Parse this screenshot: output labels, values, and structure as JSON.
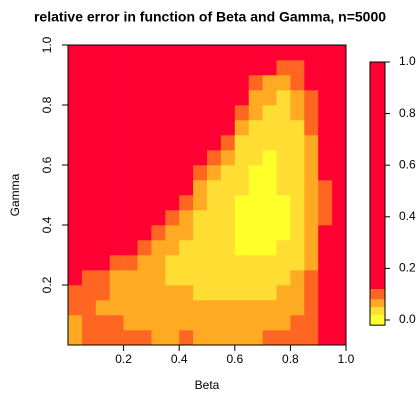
{
  "chart_data": {
    "type": "heatmap",
    "title": "relative error in function of Beta and Gamma, n=5000",
    "x_label": "Beta",
    "y_label": "Gamma",
    "xlim": [
      0,
      1
    ],
    "ylim": [
      0,
      1
    ],
    "xticks": [
      0.2,
      0.4,
      0.6,
      0.8,
      {
        "value": 1,
        "label": "1.0"
      }
    ],
    "yticks": [
      0.2,
      0.4,
      0.6,
      0.8,
      {
        "value": 1,
        "label": "1.0"
      }
    ],
    "x": [
      0.025,
      0.075,
      0.125,
      0.175,
      0.225,
      0.275,
      0.325,
      0.375,
      0.425,
      0.475,
      0.525,
      0.575,
      0.625,
      0.675,
      0.725,
      0.775,
      0.825,
      0.875,
      0.925,
      0.975
    ],
    "y": [
      0.025,
      0.075,
      0.125,
      0.175,
      0.225,
      0.275,
      0.325,
      0.375,
      0.425,
      0.475,
      0.525,
      0.575,
      0.625,
      0.675,
      0.725,
      0.775,
      0.825,
      0.875,
      0.925,
      0.975
    ],
    "z": [
      [
        0.06,
        0.1,
        0.12,
        0.1,
        0.09,
        0.09,
        0.08,
        0.08,
        0.09,
        0.08,
        0.08,
        0.08,
        0.08,
        0.08,
        0.09,
        0.1,
        0.1,
        0.12,
        1,
        1
      ],
      [
        0.08,
        0.09,
        0.1,
        0.09,
        0.08,
        0.08,
        0.08,
        0.07,
        0.07,
        0.07,
        0.07,
        0.07,
        0.07,
        0.07,
        0.07,
        0.08,
        0.09,
        0.12,
        1,
        1
      ],
      [
        0.1,
        0.09,
        0.08,
        0.08,
        0.07,
        0.07,
        0.07,
        0.06,
        0.06,
        0.06,
        0.06,
        0.06,
        0.06,
        0.06,
        0.06,
        0.07,
        0.08,
        0.1,
        1,
        1
      ],
      [
        0.12,
        0.1,
        0.09,
        0.08,
        0.07,
        0.07,
        0.06,
        0.06,
        0.06,
        0.05,
        0.05,
        0.05,
        0.05,
        0.05,
        0.05,
        0.06,
        0.07,
        0.1,
        1,
        1
      ],
      [
        1,
        0.12,
        0.1,
        0.08,
        0.07,
        0.06,
        0.06,
        0.05,
        0.05,
        0.05,
        0.04,
        0.04,
        0.04,
        0.04,
        0.04,
        0.05,
        0.06,
        0.09,
        1,
        1
      ],
      [
        1,
        1,
        1,
        0.12,
        0.09,
        0.07,
        0.06,
        0.05,
        0.05,
        0.04,
        0.04,
        0.03,
        0.03,
        0.03,
        0.03,
        0.04,
        0.05,
        0.08,
        1,
        1
      ],
      [
        1,
        1,
        1,
        1,
        1,
        0.1,
        0.07,
        0.06,
        0.05,
        0.04,
        0.03,
        0.03,
        0.02,
        0.02,
        0.02,
        0.03,
        0.04,
        0.07,
        1,
        1
      ],
      [
        1,
        1,
        1,
        1,
        1,
        1,
        0.12,
        0.08,
        0.06,
        0.05,
        0.04,
        0.03,
        0.02,
        0.01,
        0.01,
        0.02,
        0.03,
        0.06,
        1,
        1
      ],
      [
        1,
        1,
        1,
        1,
        1,
        1,
        1,
        0.12,
        0.07,
        0.05,
        0.04,
        0.03,
        0.02,
        0.01,
        0.01,
        0.02,
        0.03,
        0.06,
        0.12,
        1
      ],
      [
        1,
        1,
        1,
        1,
        1,
        1,
        1,
        1,
        0.1,
        0.06,
        0.04,
        0.03,
        0.02,
        0.01,
        0.01,
        0.02,
        0.04,
        0.06,
        0.12,
        1
      ],
      [
        1,
        1,
        1,
        1,
        1,
        1,
        1,
        1,
        1,
        0.08,
        0.05,
        0.04,
        0.03,
        0.02,
        0.02,
        0.03,
        0.04,
        0.07,
        0.12,
        1
      ],
      [
        1,
        1,
        1,
        1,
        1,
        1,
        1,
        1,
        1,
        0.12,
        0.07,
        0.05,
        0.03,
        0.02,
        0.02,
        0.03,
        0.04,
        0.08,
        1,
        1
      ],
      [
        1,
        1,
        1,
        1,
        1,
        1,
        1,
        1,
        1,
        1,
        0.12,
        0.06,
        0.04,
        0.03,
        0.02,
        0.03,
        0.05,
        0.08,
        1,
        1
      ],
      [
        1,
        1,
        1,
        1,
        1,
        1,
        1,
        1,
        1,
        1,
        1,
        0.1,
        0.05,
        0.04,
        0.03,
        0.03,
        0.05,
        0.08,
        1,
        1
      ],
      [
        1,
        1,
        1,
        1,
        1,
        1,
        1,
        1,
        1,
        1,
        1,
        1,
        0.07,
        0.05,
        0.04,
        0.04,
        0.05,
        0.09,
        1,
        1
      ],
      [
        1,
        1,
        1,
        1,
        1,
        1,
        1,
        1,
        1,
        1,
        1,
        1,
        0.12,
        0.06,
        0.04,
        0.05,
        0.06,
        0.1,
        1,
        1
      ],
      [
        1,
        1,
        1,
        1,
        1,
        1,
        1,
        1,
        1,
        1,
        1,
        1,
        1,
        0.08,
        0.06,
        0.05,
        0.07,
        0.12,
        1,
        1
      ],
      [
        1,
        1,
        1,
        1,
        1,
        1,
        1,
        1,
        1,
        1,
        1,
        1,
        1,
        0.12,
        0.08,
        0.07,
        0.1,
        1,
        1,
        1
      ],
      [
        1,
        1,
        1,
        1,
        1,
        1,
        1,
        1,
        1,
        1,
        1,
        1,
        1,
        1,
        1,
        0.1,
        0.12,
        1,
        1,
        1
      ],
      [
        1,
        1,
        1,
        1,
        1,
        1,
        1,
        1,
        1,
        1,
        1,
        1,
        1,
        1,
        1,
        1,
        1,
        1,
        1,
        1
      ]
    ],
    "colorbar": {
      "breaks": [
        -0.02,
        0.02,
        0.05,
        0.08,
        0.12,
        1
      ],
      "colors": [
        "#ffff2a",
        "#ffdd33",
        "#ffaa22",
        "#ff6622",
        "#ff0033"
      ],
      "ticks": [
        {
          "value": 0,
          "label": "0.0"
        },
        0.2,
        0.4,
        0.6,
        0.8,
        {
          "value": 1,
          "label": "1.0"
        }
      ]
    }
  }
}
